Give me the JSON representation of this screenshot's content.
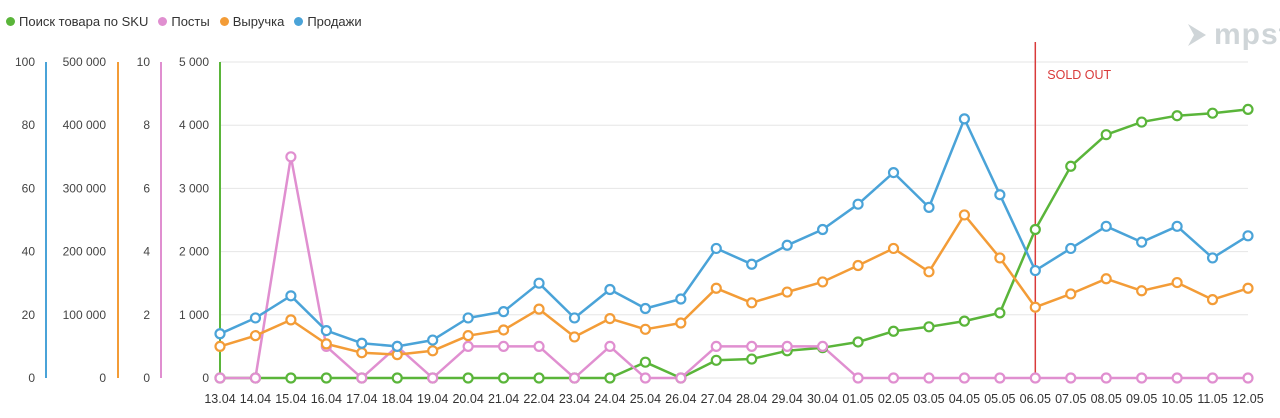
{
  "brand": {
    "logo_text": "mpst"
  },
  "chart_data": {
    "type": "line",
    "categories": [
      "13.04",
      "14.04",
      "15.04",
      "16.04",
      "17.04",
      "18.04",
      "19.04",
      "20.04",
      "21.04",
      "22.04",
      "23.04",
      "24.04",
      "25.04",
      "26.04",
      "27.04",
      "28.04",
      "29.04",
      "30.04",
      "01.05",
      "02.05",
      "03.05",
      "04.05",
      "05.05",
      "06.05",
      "07.05",
      "08.05",
      "09.05",
      "10.05",
      "11.05",
      "12.05"
    ],
    "legend_position": "top-left",
    "grid": true,
    "axes": [
      {
        "id": "search",
        "range": [
          0,
          100
        ],
        "ticks": [
          "0",
          "20",
          "40",
          "60",
          "80",
          "100"
        ],
        "color": "#4aa3d8"
      },
      {
        "id": "revenue",
        "range": [
          0,
          500000
        ],
        "ticks": [
          "0",
          "100 000",
          "200 000",
          "300 000",
          "400 000",
          "500 000"
        ],
        "color": "#f39c37"
      },
      {
        "id": "posts",
        "range": [
          0,
          10
        ],
        "ticks": [
          "0",
          "2",
          "4",
          "6",
          "8",
          "10"
        ],
        "color": "#e08fd0"
      },
      {
        "id": "sales",
        "range": [
          0,
          5000
        ],
        "ticks": [
          "0",
          "1 000",
          "2 000",
          "3 000",
          "4 000",
          "5 000"
        ],
        "color": "#5ab53a"
      }
    ],
    "series": [
      {
        "name": "Поиск товара по SKU",
        "color": "#5ab53a",
        "axis": "sales",
        "values": [
          0,
          0,
          0,
          0,
          0,
          0,
          0,
          0,
          0,
          0,
          0,
          0,
          250,
          0,
          280,
          300,
          430,
          480,
          570,
          740,
          810,
          900,
          1030,
          2350,
          3350,
          3850,
          4050,
          4150,
          4190,
          4250
        ]
      },
      {
        "name": "Посты",
        "color": "#e08fd0",
        "axis": "posts",
        "values": [
          0,
          0,
          7,
          1,
          0,
          1,
          0,
          1,
          1,
          1,
          0,
          1,
          0,
          0,
          1,
          1,
          1,
          1,
          0,
          0,
          0,
          0,
          0,
          0,
          0,
          0,
          0,
          0,
          0,
          0
        ]
      },
      {
        "name": "Выручка",
        "color": "#f39c37",
        "axis": "sales",
        "values": [
          500,
          670,
          920,
          540,
          400,
          370,
          430,
          670,
          760,
          1090,
          650,
          940,
          770,
          870,
          1420,
          1190,
          1360,
          1520,
          1780,
          2050,
          1680,
          2580,
          1900,
          1120,
          1330,
          1570,
          1380,
          1510,
          1240,
          1420
        ]
      },
      {
        "name": "Продажи",
        "color": "#4aa3d8",
        "axis": "sales",
        "values": [
          700,
          950,
          1300,
          750,
          550,
          500,
          600,
          950,
          1050,
          1500,
          950,
          1400,
          1100,
          1250,
          2050,
          1800,
          2100,
          2350,
          2750,
          3250,
          2700,
          4100,
          2900,
          1700,
          2050,
          2400,
          2150,
          2400,
          1900,
          2250
        ]
      }
    ],
    "annotation": {
      "text": "SOLD OUT",
      "at": "06.05",
      "color": "#d93a3a"
    }
  }
}
